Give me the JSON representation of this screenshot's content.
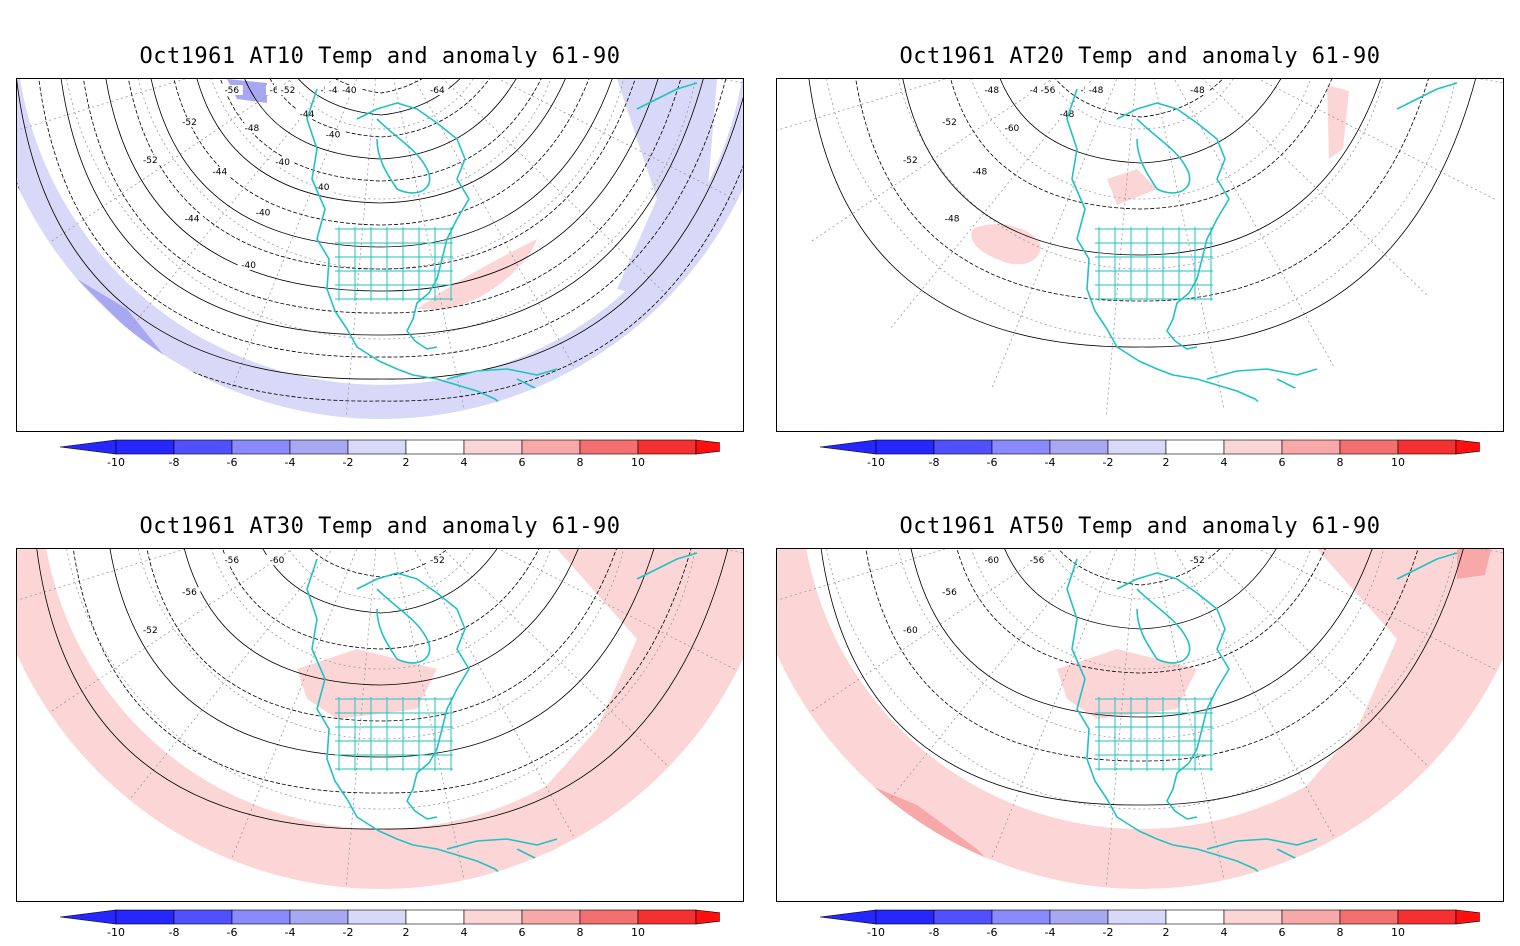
{
  "colors": {
    "neg_10": "#2626ff",
    "neg_8": "#5050ff",
    "neg_6": "#8a8aff",
    "neg_4": "#a8a8f2",
    "neg_2": "#d8d8f8",
    "pos_2": "#fcd6d6",
    "pos_4": "#f8a8a8",
    "pos_6": "#f47070",
    "pos_8": "#f53030",
    "pos_10": "#ff1010",
    "coast": "#22c2c2",
    "grid": "#999999",
    "contour": "#000000"
  },
  "colorbar": {
    "ticks": [
      "-10",
      "-8",
      "-6",
      "-4",
      "-2",
      "2",
      "4",
      "6",
      "8",
      "10"
    ]
  },
  "panels": [
    {
      "id": "AT10",
      "title": "Oct1961 AT10 Temp and anomaly 61-90",
      "anomaly_band": "negative",
      "contour_labels": [
        "-64",
        "-60",
        "-56",
        "-52",
        "-52",
        "-52",
        "-52",
        "-48",
        "-44",
        "-44",
        "-44",
        "-44",
        "-40",
        "-40",
        "-40",
        "-40",
        "-40",
        "-40"
      ]
    },
    {
      "id": "AT20",
      "title": "Oct1961 AT20 Temp and anomaly 61-90",
      "anomaly_band": "small-positive",
      "contour_labels": [
        "-48",
        "-48",
        "-48",
        "-52",
        "-52",
        "-52",
        "-56",
        "-60",
        "-48",
        "-48",
        "-48",
        "-48"
      ]
    },
    {
      "id": "AT30",
      "title": "Oct1961 AT30 Temp and anomaly 61-90",
      "anomaly_band": "positive",
      "contour_labels": [
        "-52",
        "-60",
        "-56",
        "-56",
        "-52"
      ]
    },
    {
      "id": "AT50",
      "title": "Oct1961 AT50 Temp and anomaly 61-90",
      "anomaly_band": "positive-strong",
      "contour_labels": [
        "-52",
        "-56",
        "-60",
        "-56",
        "-60"
      ]
    }
  ]
}
